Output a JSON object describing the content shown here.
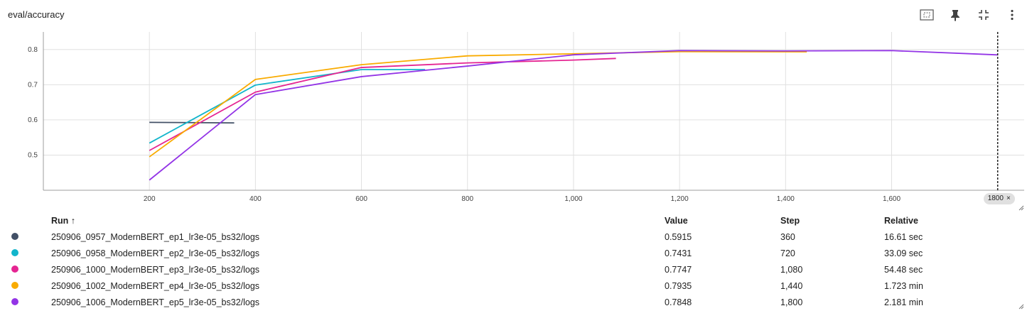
{
  "panel": {
    "title": "eval/accuracy"
  },
  "toolbar": {
    "buttons": [
      {
        "name": "fit-domain-button",
        "icon": "fit-domain-icon"
      },
      {
        "name": "pin-button",
        "icon": "pin-icon"
      },
      {
        "name": "collapse-button",
        "icon": "collapse-icon"
      },
      {
        "name": "more-options-button",
        "icon": "more-vert-icon"
      }
    ]
  },
  "cursor": {
    "label": "1800",
    "close": "×",
    "step": 1800
  },
  "chart_data": {
    "type": "line",
    "xlim": [
      0,
      1850
    ],
    "ylim": [
      0.4,
      0.85
    ],
    "x_ticks": [
      200,
      400,
      600,
      800,
      1000,
      1200,
      1400,
      1600
    ],
    "x_tick_labels": [
      "200",
      "400",
      "600",
      "800",
      "1,000",
      "1,200",
      "1,400",
      "1,600"
    ],
    "y_ticks": [
      0.5,
      0.6,
      0.7,
      0.8
    ],
    "y_tick_labels": [
      "0.5",
      "0.6",
      "0.7",
      "0.8"
    ],
    "grid": true,
    "series": [
      {
        "name": "250906_0957_ModernBERT_ep1_lr3e-05_bs32/logs",
        "color": "#425066",
        "x": [
          200,
          360
        ],
        "y": [
          0.593,
          0.5915
        ]
      },
      {
        "name": "250906_0958_ModernBERT_ep2_lr3e-05_bs32/logs",
        "color": "#12b5cb",
        "x": [
          200,
          400,
          600,
          720
        ],
        "y": [
          0.534,
          0.699,
          0.743,
          0.7431
        ]
      },
      {
        "name": "250906_1000_ModernBERT_ep3_lr3e-05_bs32/logs",
        "color": "#e52592",
        "x": [
          200,
          400,
          600,
          800,
          1000,
          1080
        ],
        "y": [
          0.513,
          0.679,
          0.749,
          0.762,
          0.77,
          0.7747
        ]
      },
      {
        "name": "250906_1002_ModernBERT_ep4_lr3e-05_bs32/logs",
        "color": "#f9ab00",
        "x": [
          200,
          400,
          600,
          800,
          1000,
          1200,
          1440
        ],
        "y": [
          0.495,
          0.715,
          0.757,
          0.782,
          0.788,
          0.794,
          0.7935
        ]
      },
      {
        "name": "250906_1006_ModernBERT_ep5_lr3e-05_bs32/logs",
        "color": "#9334e6",
        "x": [
          200,
          400,
          600,
          800,
          1000,
          1200,
          1400,
          1600,
          1800
        ],
        "y": [
          0.429,
          0.672,
          0.723,
          0.753,
          0.785,
          0.797,
          0.796,
          0.797,
          0.7848
        ]
      }
    ]
  },
  "table": {
    "headers": {
      "run": "Run ↑",
      "value": "Value",
      "step": "Step",
      "relative": "Relative"
    },
    "rows": [
      {
        "color": "#425066",
        "run": "250906_0957_ModernBERT_ep1_lr3e-05_bs32/logs",
        "value": "0.5915",
        "step": "360",
        "relative": "16.61 sec"
      },
      {
        "color": "#12b5cb",
        "run": "250906_0958_ModernBERT_ep2_lr3e-05_bs32/logs",
        "value": "0.7431",
        "step": "720",
        "relative": "33.09 sec"
      },
      {
        "color": "#e52592",
        "run": "250906_1000_ModernBERT_ep3_lr3e-05_bs32/logs",
        "value": "0.7747",
        "step": "1,080",
        "relative": "54.48 sec"
      },
      {
        "color": "#f9ab00",
        "run": "250906_1002_ModernBERT_ep4_lr3e-05_bs32/logs",
        "value": "0.7935",
        "step": "1,440",
        "relative": "1.723 min"
      },
      {
        "color": "#9334e6",
        "run": "250906_1006_ModernBERT_ep5_lr3e-05_bs32/logs",
        "value": "0.7848",
        "step": "1,800",
        "relative": "2.181 min"
      }
    ]
  }
}
